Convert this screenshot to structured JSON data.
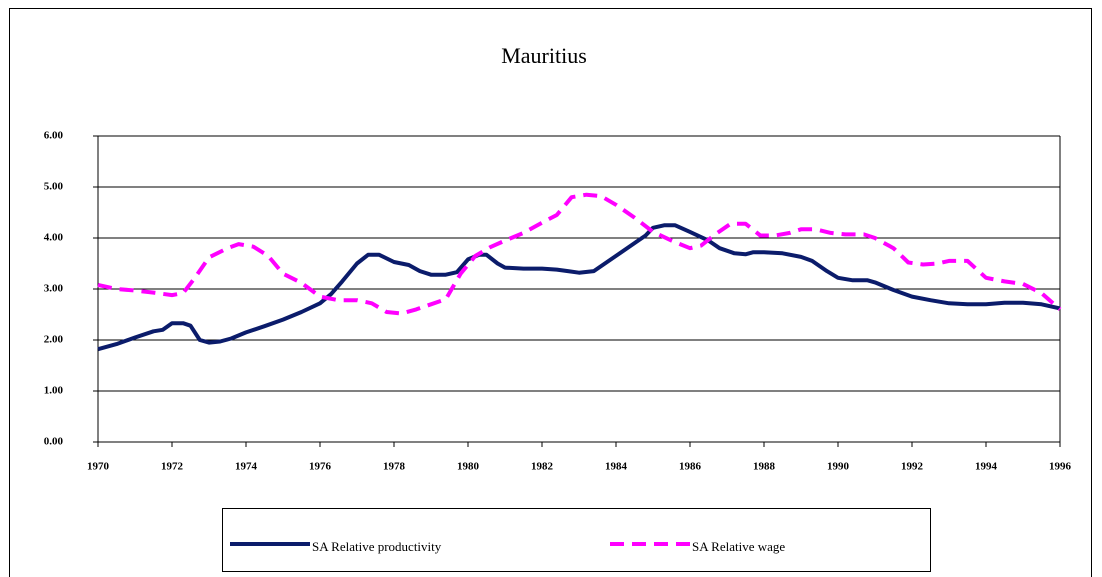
{
  "chart_data": {
    "type": "line",
    "title": "Mauritius",
    "xlim": [
      1970,
      1996
    ],
    "xticks": [
      1970,
      1972,
      1974,
      1976,
      1978,
      1980,
      1982,
      1984,
      1986,
      1988,
      1990,
      1992,
      1994,
      1996
    ],
    "ylim": [
      0,
      6
    ],
    "yticks": [
      {
        "value": 0,
        "label": "0.00"
      },
      {
        "value": 1,
        "label": "1.00"
      },
      {
        "value": 2,
        "label": "2.00"
      },
      {
        "value": 3,
        "label": "3.00"
      },
      {
        "value": 4,
        "label": "4.00"
      },
      {
        "value": 5,
        "label": "5.00"
      },
      {
        "value": 6,
        "label": "6.00"
      }
    ],
    "grid": true,
    "series": [
      {
        "name": "SA Relative productivity",
        "color": "#0b1c6b",
        "dash": false,
        "x": [
          1970,
          1970.5,
          1971,
          1971.5,
          1971.75,
          1972,
          1972.3,
          1972.5,
          1972.75,
          1973,
          1973.3,
          1973.6,
          1974,
          1974.5,
          1975,
          1975.5,
          1976,
          1976.3,
          1976.6,
          1977,
          1977.3,
          1977.6,
          1978,
          1978.4,
          1978.7,
          1979,
          1979.4,
          1979.7,
          1980,
          1980.3,
          1980.5,
          1980.8,
          1981,
          1981.5,
          1982,
          1982.4,
          1982.7,
          1983,
          1983.4,
          1983.7,
          1984,
          1984.5,
          1984.8,
          1985,
          1985.3,
          1985.6,
          1986,
          1986.5,
          1986.8,
          1987.2,
          1987.5,
          1987.7,
          1988,
          1988.5,
          1989,
          1989.3,
          1989.7,
          1990,
          1990.4,
          1990.8,
          1991,
          1991.5,
          1992,
          1992.5,
          1993,
          1993.5,
          1994,
          1994.5,
          1995,
          1995.5,
          1996
        ],
        "values": [
          1.82,
          1.92,
          2.05,
          2.17,
          2.2,
          2.33,
          2.33,
          2.28,
          2.0,
          1.95,
          1.97,
          2.03,
          2.15,
          2.27,
          2.4,
          2.55,
          2.72,
          2.9,
          3.15,
          3.5,
          3.67,
          3.67,
          3.53,
          3.47,
          3.35,
          3.28,
          3.28,
          3.33,
          3.58,
          3.67,
          3.67,
          3.5,
          3.42,
          3.4,
          3.4,
          3.38,
          3.35,
          3.32,
          3.35,
          3.5,
          3.65,
          3.9,
          4.05,
          4.2,
          4.25,
          4.25,
          4.12,
          3.95,
          3.8,
          3.7,
          3.68,
          3.72,
          3.72,
          3.7,
          3.63,
          3.55,
          3.35,
          3.22,
          3.17,
          3.17,
          3.13,
          2.98,
          2.85,
          2.78,
          2.72,
          2.7,
          2.7,
          2.73,
          2.73,
          2.7,
          2.62
        ]
      },
      {
        "name": "SA Relative wage",
        "color": "#ff00ff",
        "dash": true,
        "x": [
          1970,
          1970.5,
          1971,
          1971.5,
          1972,
          1972.3,
          1972.6,
          1973,
          1973.5,
          1973.8,
          1974.2,
          1974.6,
          1975,
          1975.5,
          1976,
          1976.5,
          1977,
          1977.4,
          1977.8,
          1978.2,
          1978.6,
          1979,
          1979.4,
          1979.8,
          1980.2,
          1980.6,
          1981,
          1981.5,
          1982,
          1982.4,
          1982.8,
          1983.2,
          1983.6,
          1984,
          1984.5,
          1985,
          1985.5,
          1986,
          1986.3,
          1986.7,
          1987.1,
          1987.5,
          1987.9,
          1988.3,
          1988.7,
          1989,
          1989.4,
          1989.8,
          1990.2,
          1990.7,
          1991,
          1991.5,
          1991.9,
          1992.3,
          1992.7,
          1993,
          1993.5,
          1994,
          1994.5,
          1995,
          1995.5,
          1996
        ],
        "values": [
          3.08,
          3.0,
          2.97,
          2.93,
          2.88,
          2.92,
          3.2,
          3.62,
          3.8,
          3.88,
          3.83,
          3.65,
          3.3,
          3.12,
          2.85,
          2.78,
          2.78,
          2.72,
          2.55,
          2.52,
          2.6,
          2.7,
          2.8,
          3.3,
          3.65,
          3.82,
          3.95,
          4.1,
          4.3,
          4.45,
          4.8,
          4.85,
          4.82,
          4.65,
          4.4,
          4.12,
          3.95,
          3.8,
          3.85,
          4.08,
          4.28,
          4.28,
          4.05,
          4.05,
          4.1,
          4.17,
          4.17,
          4.1,
          4.07,
          4.07,
          4.0,
          3.8,
          3.52,
          3.48,
          3.5,
          3.55,
          3.55,
          3.22,
          3.15,
          3.1,
          2.92,
          2.6
        ]
      }
    ]
  }
}
